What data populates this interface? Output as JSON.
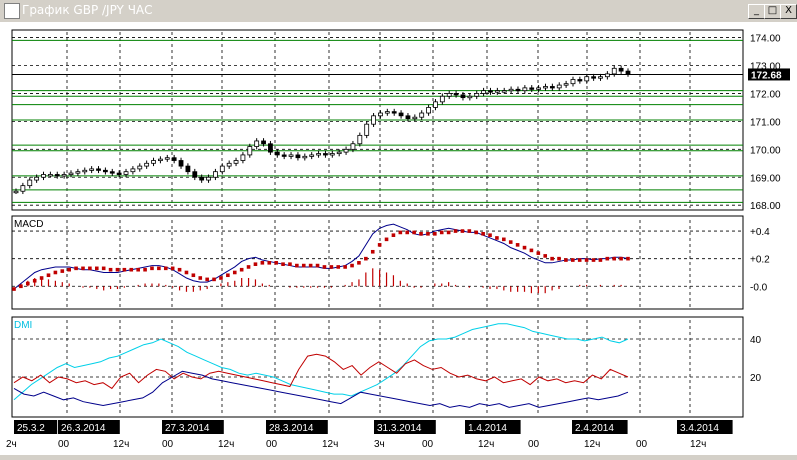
{
  "window": {
    "title": "График GBP /JPY  ЧАС",
    "buttons": {
      "minimize": "_",
      "maximize": "□",
      "close": "X"
    }
  },
  "chart_data": [
    {
      "type": "candlestick",
      "panel": "price",
      "ylim": [
        167.9,
        174.2
      ],
      "yticks": [
        "174.00",
        "173.00",
        "172.00",
        "171.00",
        "170.00",
        "169.00",
        "168.00"
      ],
      "last_price_label": "172.68",
      "last_price": 172.68,
      "horizontal_levels": [
        173.9,
        172.68,
        172.1,
        171.9,
        171.6,
        171.05,
        170.15,
        169.95,
        169.05,
        168.55,
        168.1
      ],
      "close_series": [
        168.5,
        168.7,
        168.9,
        169.0,
        169.1,
        169.1,
        169.05,
        169.1,
        169.15,
        169.2,
        169.25,
        169.3,
        169.25,
        169.2,
        169.15,
        169.1,
        169.2,
        169.3,
        169.4,
        169.5,
        169.6,
        169.65,
        169.7,
        169.6,
        169.4,
        169.2,
        169.0,
        168.9,
        169.0,
        169.2,
        169.4,
        169.5,
        169.6,
        169.8,
        170.1,
        170.3,
        170.2,
        169.9,
        169.8,
        169.75,
        169.8,
        169.7,
        169.75,
        169.8,
        169.85,
        169.8,
        169.85,
        169.9,
        170.0,
        170.2,
        170.5,
        170.9,
        171.2,
        171.3,
        171.35,
        171.3,
        171.2,
        171.1,
        171.15,
        171.3,
        171.5,
        171.7,
        171.9,
        172.0,
        171.95,
        171.85,
        171.9,
        172.0,
        172.1,
        172.05,
        172.1,
        172.1,
        172.15,
        172.1,
        172.2,
        172.15,
        172.2,
        172.25,
        172.2,
        172.3,
        172.35,
        172.5,
        172.45,
        172.6,
        172.55,
        172.6,
        172.7,
        172.9,
        172.8,
        172.7
      ]
    },
    {
      "type": "line",
      "panel": "MACD",
      "title": "MACD",
      "ylim": [
        -0.15,
        0.48
      ],
      "yticks": [
        "+0.4",
        "+0.2",
        "-0.0"
      ],
      "series": [
        {
          "values": [
            -0.02,
            0.02,
            0.06,
            0.1,
            0.12,
            0.13,
            0.14,
            0.14,
            0.14,
            0.13,
            0.12,
            0.12,
            0.11,
            0.1,
            0.1,
            0.1,
            0.11,
            0.12,
            0.13,
            0.14,
            0.15,
            0.15,
            0.14,
            0.12,
            0.09,
            0.06,
            0.04,
            0.03,
            0.03,
            0.05,
            0.08,
            0.11,
            0.14,
            0.18,
            0.2,
            0.21,
            0.19,
            0.18,
            0.17,
            0.16,
            0.15,
            0.14,
            0.14,
            0.14,
            0.14,
            0.13,
            0.13,
            0.14,
            0.15,
            0.18,
            0.22,
            0.3,
            0.38,
            0.42,
            0.44,
            0.45,
            0.43,
            0.41,
            0.38,
            0.37,
            0.38,
            0.4,
            0.41,
            0.42,
            0.41,
            0.4,
            0.39,
            0.39,
            0.37,
            0.35,
            0.33,
            0.31,
            0.28,
            0.26,
            0.24,
            0.21,
            0.19,
            0.17,
            0.17,
            0.18,
            0.19,
            0.19,
            0.2,
            0.2,
            0.19,
            0.2,
            0.2,
            0.21,
            0.21,
            0.2
          ]
        },
        {
          "values": [
            -0.02,
            0.0,
            0.02,
            0.04,
            0.06,
            0.08,
            0.1,
            0.11,
            0.12,
            0.13,
            0.13,
            0.13,
            0.13,
            0.13,
            0.12,
            0.12,
            0.12,
            0.12,
            0.12,
            0.12,
            0.13,
            0.13,
            0.13,
            0.13,
            0.12,
            0.1,
            0.08,
            0.06,
            0.05,
            0.05,
            0.06,
            0.08,
            0.1,
            0.12,
            0.14,
            0.16,
            0.17,
            0.17,
            0.17,
            0.16,
            0.16,
            0.15,
            0.15,
            0.15,
            0.15,
            0.14,
            0.14,
            0.14,
            0.14,
            0.15,
            0.17,
            0.2,
            0.25,
            0.3,
            0.34,
            0.37,
            0.39,
            0.39,
            0.39,
            0.38,
            0.38,
            0.38,
            0.39,
            0.39,
            0.4,
            0.4,
            0.4,
            0.39,
            0.38,
            0.37,
            0.35,
            0.34,
            0.32,
            0.3,
            0.28,
            0.26,
            0.24,
            0.22,
            0.2,
            0.2,
            0.19,
            0.19,
            0.19,
            0.19,
            0.19,
            0.19,
            0.2,
            0.2,
            0.2,
            0.2
          ]
        },
        {
          "values": [
            0.0,
            0.02,
            0.04,
            0.06,
            0.06,
            0.05,
            0.04,
            0.03,
            0.02,
            0.0,
            -0.01,
            -0.01,
            -0.02,
            -0.03,
            -0.02,
            -0.02,
            -0.01,
            0.0,
            0.01,
            0.02,
            0.02,
            0.02,
            0.01,
            -0.01,
            -0.03,
            -0.04,
            -0.04,
            -0.03,
            -0.02,
            0.0,
            0.02,
            0.03,
            0.04,
            0.06,
            0.06,
            0.05,
            0.02,
            0.01,
            0.0,
            0.0,
            -0.01,
            -0.01,
            -0.01,
            -0.01,
            -0.01,
            -0.01,
            -0.01,
            0.0,
            0.01,
            0.03,
            0.05,
            0.1,
            0.13,
            0.12,
            0.1,
            0.08,
            0.04,
            0.02,
            -0.01,
            -0.01,
            0.0,
            0.02,
            0.02,
            0.03,
            0.01,
            0.0,
            -0.01,
            0.0,
            -0.01,
            -0.02,
            -0.02,
            -0.03,
            -0.04,
            -0.04,
            -0.04,
            -0.05,
            -0.05,
            -0.05,
            -0.03,
            -0.02,
            0.0,
            0.0,
            0.01,
            0.01,
            0.0,
            0.01,
            0.0,
            0.01,
            0.01,
            0.0
          ]
        }
      ]
    },
    {
      "type": "line",
      "panel": "DMI",
      "title": "DMI",
      "ylim": [
        0,
        50
      ],
      "yticks": [
        "40",
        "20"
      ],
      "series": [
        {
          "values": [
            8,
            12,
            16,
            19,
            22,
            25,
            27,
            25,
            26,
            27,
            28,
            30,
            31,
            33,
            35,
            37,
            38,
            40,
            38,
            36,
            33,
            31,
            29,
            27,
            25,
            24,
            22,
            21,
            22,
            21,
            20,
            18,
            16,
            15,
            14,
            13,
            12,
            11,
            11,
            10,
            12,
            14,
            16,
            19,
            22,
            26,
            31,
            36,
            39,
            40,
            40,
            41,
            43,
            45,
            46,
            47,
            48,
            48,
            47,
            46,
            44,
            43,
            42,
            41,
            40,
            40,
            39,
            40,
            41,
            39,
            38,
            40
          ]
        },
        {
          "values": [
            17,
            20,
            18,
            21,
            17,
            20,
            19,
            17,
            18,
            16,
            17,
            14,
            20,
            22,
            17,
            21,
            24,
            23,
            19,
            22,
            20,
            19,
            22,
            23,
            22,
            21,
            20,
            19,
            18,
            17,
            16,
            15,
            24,
            31,
            32,
            31,
            28,
            24,
            26,
            21,
            25,
            28,
            25,
            22,
            27,
            29,
            26,
            24,
            25,
            22,
            20,
            21,
            19,
            18,
            20,
            17,
            18,
            19,
            16,
            20,
            18,
            19,
            17,
            18,
            17,
            21,
            19,
            24,
            22,
            20
          ]
        },
        {
          "values": [
            14,
            11,
            10,
            12,
            10,
            8,
            9,
            7,
            6,
            5,
            6,
            7,
            8,
            9,
            12,
            17,
            20,
            23,
            22,
            21,
            19,
            18,
            17,
            16,
            15,
            14,
            13,
            12,
            11,
            10,
            9,
            8,
            7,
            6,
            9,
            12,
            11,
            10,
            9,
            8,
            7,
            6,
            5,
            6,
            4,
            5,
            4,
            6,
            5,
            6,
            4,
            5,
            6,
            4,
            5,
            6,
            7,
            8,
            9,
            8,
            9,
            10,
            12
          ]
        }
      ]
    }
  ],
  "xaxis": {
    "date_labels": [
      "25.3.2",
      "26.3.2014",
      "27.3.2014",
      "28.3.2014",
      "31.3.2014",
      "1.4.2014",
      "2.4.2014",
      "3.4.2014"
    ],
    "hour_labels": [
      "2ч",
      "00",
      "12ч",
      "00",
      "12ч",
      "00",
      "12ч",
      "3ч",
      "00",
      "12ч",
      "00",
      "12ч",
      "00",
      "12ч"
    ]
  }
}
